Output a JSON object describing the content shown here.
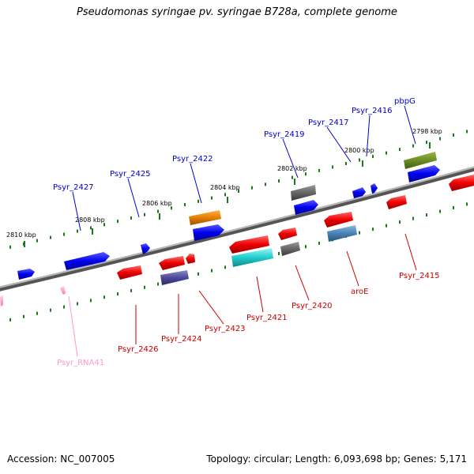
{
  "title": "Pseudomonas syringae pv. syringae B728a, complete genome",
  "footer": {
    "accession": "Accession: NC_007005",
    "summary": "Topology: circular; Length: 6,093,698 bp; Genes: 5,171"
  },
  "colors": {
    "backbone": "#7f7f7f",
    "forward_gene": "#0000ff",
    "reverse_gene": "#ff0000",
    "forward_label": "#0000cc",
    "reverse_label": "#cc0000",
    "rna_label": "#ff99cc",
    "tick": "#1a7a1a"
  },
  "ticks": [
    {
      "label": "2810 kbp"
    },
    {
      "label": "2808 kbp"
    },
    {
      "label": "2806 kbp"
    },
    {
      "label": "2804 kbp"
    },
    {
      "label": "2802 kbp"
    },
    {
      "label": "2800 kbp"
    },
    {
      "label": "2798 kbp"
    }
  ],
  "features_top": [
    {
      "label": "Psyr_2427",
      "strand": "forward"
    },
    {
      "label": "Psyr_2425",
      "strand": "forward"
    },
    {
      "label": "Psyr_2422",
      "strand": "forward"
    },
    {
      "label": "Psyr_2419",
      "strand": "forward"
    },
    {
      "label": "Psyr_2417",
      "strand": "forward"
    },
    {
      "label": "Psyr_2416",
      "strand": "forward"
    },
    {
      "label": "pbpG",
      "strand": "forward"
    }
  ],
  "features_bottom": [
    {
      "label": "Psyr_RNA41",
      "strand": "reverse"
    },
    {
      "label": "Psyr_2426",
      "strand": "reverse"
    },
    {
      "label": "Psyr_2424",
      "strand": "reverse"
    },
    {
      "label": "Psyr_2423",
      "strand": "reverse"
    },
    {
      "label": "Psyr_2421",
      "strand": "reverse"
    },
    {
      "label": "Psyr_2420",
      "strand": "reverse"
    },
    {
      "label": "aroE",
      "strand": "reverse"
    },
    {
      "label": "Psyr_2415",
      "strand": "reverse"
    }
  ]
}
